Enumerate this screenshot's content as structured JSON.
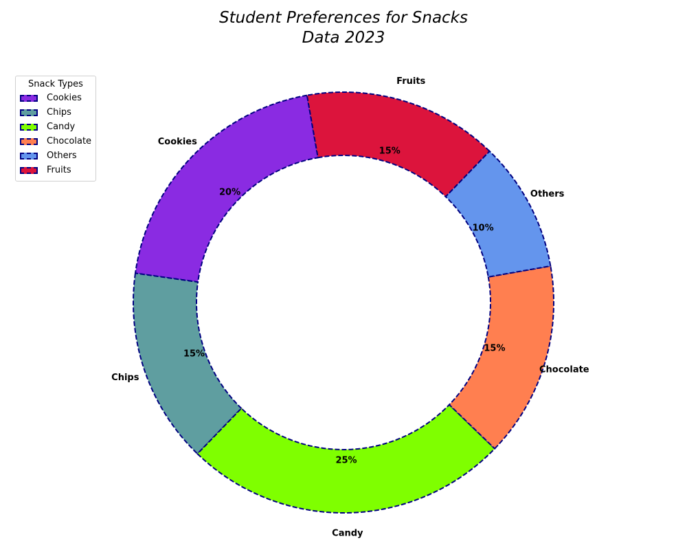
{
  "chart_data": {
    "type": "pie",
    "variant": "donut",
    "title_lines": [
      "Student Preferences for Snacks",
      "Data 2023"
    ],
    "legend_title": "Snack Types",
    "legend_placement": "top-left",
    "slices": [
      {
        "label": "Cookies",
        "value": 20,
        "pct_label": "20%",
        "color": "#8a2be2"
      },
      {
        "label": "Chips",
        "value": 15,
        "pct_label": "15%",
        "color": "#5f9ea0"
      },
      {
        "label": "Candy",
        "value": 25,
        "pct_label": "25%",
        "color": "#7fff00"
      },
      {
        "label": "Chocolate",
        "value": 15,
        "pct_label": "15%",
        "color": "#ff7f50"
      },
      {
        "label": "Others",
        "value": 10,
        "pct_label": "10%",
        "color": "#6495ed"
      },
      {
        "label": "Fruits",
        "value": 15,
        "pct_label": "15%",
        "color": "#dc143c"
      }
    ],
    "start_angle_deg": 100,
    "direction": "counterclockwise",
    "edge_color": "#000080",
    "edge_style": "dashed"
  }
}
